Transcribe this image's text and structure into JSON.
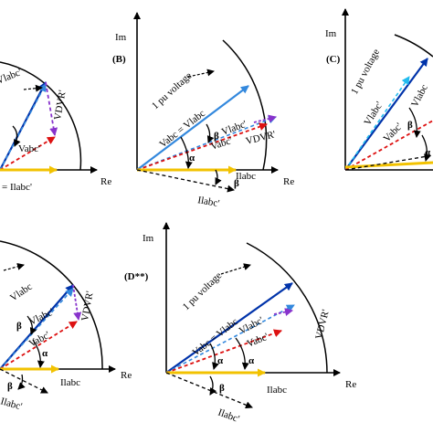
{
  "labels": {
    "im": "Im",
    "re": "Re",
    "panel_b": "(B)",
    "panel_c": "(C)",
    "panel_d": "(D**)",
    "one_pu": "1 pu voltage",
    "vabc_eq_vlabc": "Vabc = Vlabc",
    "vlabc_p": "Vlabc'",
    "vabc_p": "Vabc'",
    "vdvr_p": "VDVR'",
    "ilabc": "Ilabc",
    "ilabc_p": "Ilabc'",
    "eq_ilabc_p": "= Ilabc'",
    "alpha": "α",
    "beta": "β",
    "vlabc_frag": "Vlabc",
    "vlabc_p_frag": "Vlabc'"
  },
  "colors": {
    "axis": "#000000",
    "vabc": "#0033aa",
    "vlabc_prime": "#3388dd",
    "vlabc_prime_dashed": "#22bbee",
    "vabc_prime": "#dd1111",
    "vdvr": "#8833cc",
    "current": "#f2c200",
    "current_prime": "#000000",
    "small_arrow": "#000000"
  }
}
